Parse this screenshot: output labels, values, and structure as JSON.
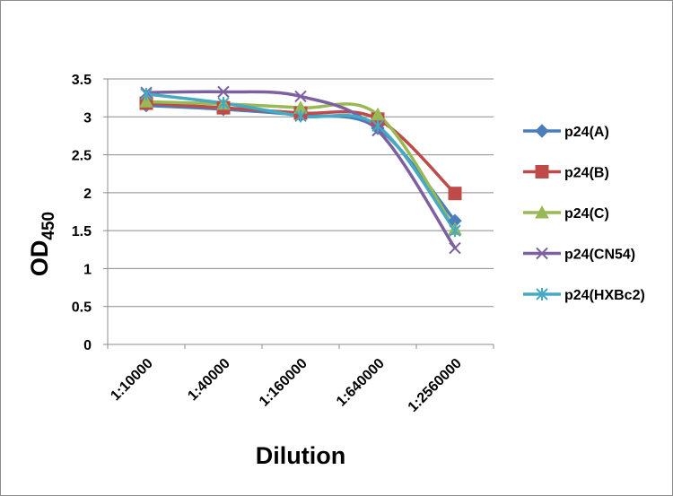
{
  "chart_data": {
    "type": "line",
    "title": "",
    "xlabel": "Dilution",
    "ylabel": {
      "main": "OD",
      "sub": "450"
    },
    "categories": [
      "1:10000",
      "1:40000",
      "1:160000",
      "1:640000",
      "1:2560000"
    ],
    "ylim": [
      0,
      3.5
    ],
    "yticks": [
      "0",
      "0.5",
      "1",
      "1.5",
      "2",
      "2.5",
      "3",
      "3.5"
    ],
    "grid": true,
    "legend_position": "right",
    "series": [
      {
        "name": "p24(A)",
        "color": "#4a7ebb",
        "marker": "diamond",
        "values": [
          3.15,
          3.1,
          3.02,
          2.85,
          1.63
        ]
      },
      {
        "name": "p24(B)",
        "color": "#be4b48",
        "marker": "square",
        "values": [
          3.18,
          3.12,
          3.05,
          2.97,
          1.99
        ]
      },
      {
        "name": "p24(C)",
        "color": "#98b954",
        "marker": "triangle",
        "values": [
          3.2,
          3.17,
          3.12,
          3.03,
          1.52
        ]
      },
      {
        "name": "p24(CN54)",
        "color": "#7d60a0",
        "marker": "x",
        "values": [
          3.32,
          3.33,
          3.27,
          2.82,
          1.27
        ]
      },
      {
        "name": "p24(HXBc2)",
        "color": "#46aac5",
        "marker": "star",
        "values": [
          3.3,
          3.18,
          3.01,
          2.88,
          1.5
        ]
      }
    ]
  }
}
